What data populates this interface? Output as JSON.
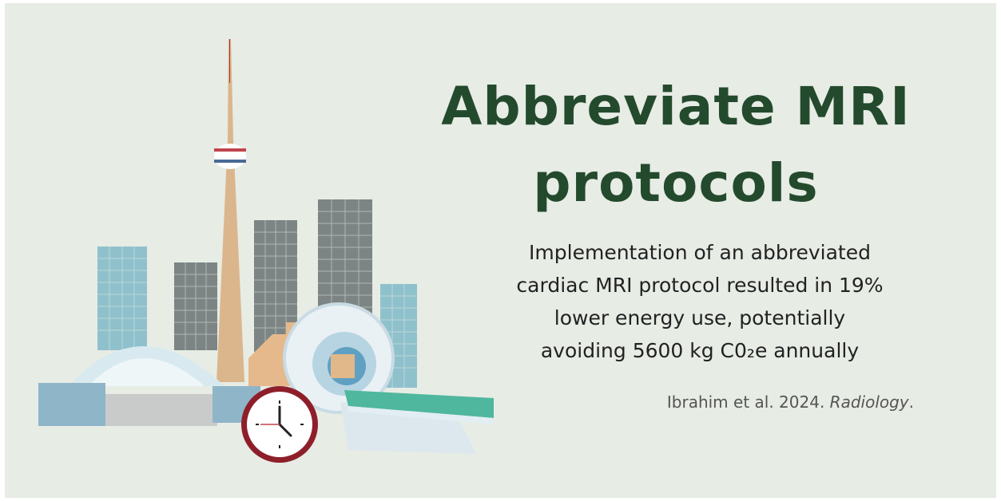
{
  "title": {
    "lines": [
      "Abbreviate MRI",
      "protocols"
    ]
  },
  "body": {
    "lines": [
      "Implementation of an abbreviated",
      "cardiac MRI protocol resulted in 19%",
      "lower energy use, potentially",
      "avoiding 5600 kg C0₂e annually"
    ]
  },
  "citation": {
    "text": "Ibrahim et al. 2024.",
    "journal": "Radiology",
    "end": "."
  }
}
